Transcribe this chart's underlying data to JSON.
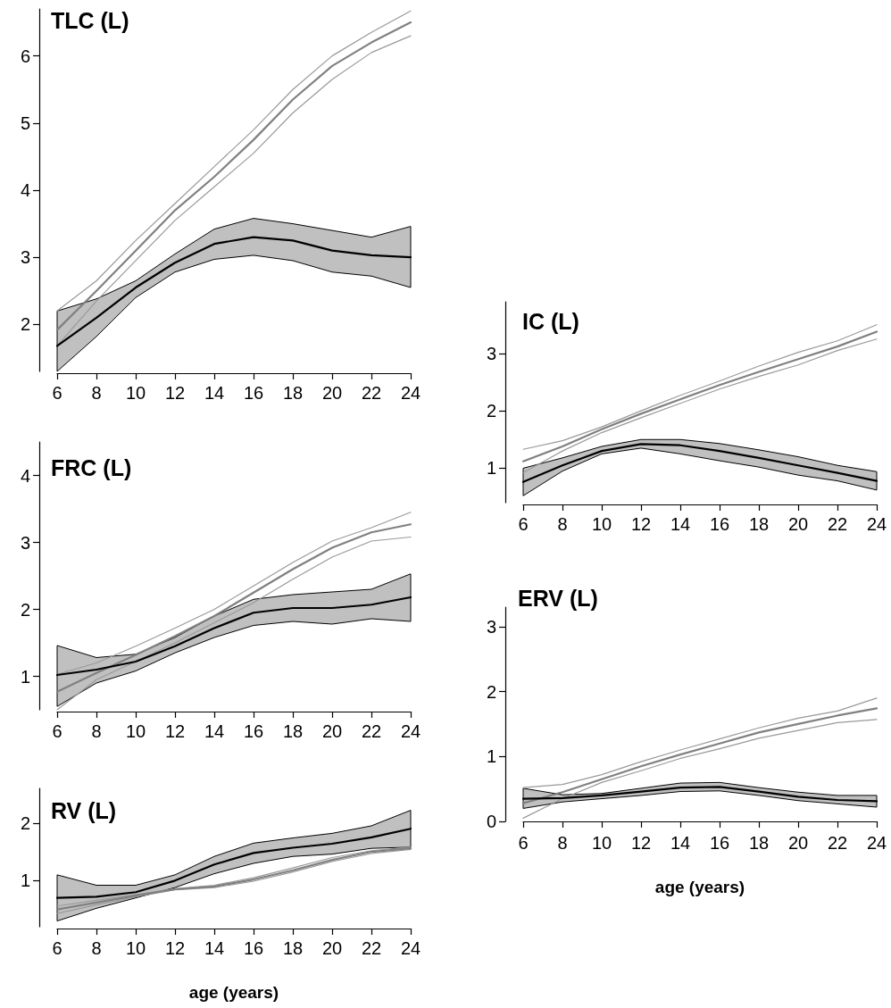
{
  "chart_data": [
    {
      "type": "line",
      "title": "TLC (L)",
      "x": [
        6,
        8,
        10,
        12,
        14,
        16,
        18,
        20,
        22,
        24
      ],
      "xlim": [
        6,
        24
      ],
      "xticks": [
        6,
        8,
        10,
        12,
        14,
        16,
        18,
        20,
        22,
        24
      ],
      "ylim": [
        1.3,
        6.7
      ],
      "yticks": [
        2,
        3,
        4,
        5,
        6
      ],
      "series": [
        {
          "color": "#999999",
          "values": [
            2.2,
            2.65,
            3.25,
            3.8,
            4.35,
            4.9,
            5.5,
            6.0,
            6.35,
            6.67
          ]
        },
        {
          "color": "#999999",
          "values": [
            1.68,
            2.35,
            2.95,
            3.55,
            4.05,
            4.55,
            5.15,
            5.65,
            6.05,
            6.3
          ]
        },
        {
          "color": "#808080",
          "values": [
            1.92,
            2.5,
            3.1,
            3.7,
            4.2,
            4.75,
            5.35,
            5.85,
            6.2,
            6.5
          ]
        },
        {
          "color": "#000000",
          "values": [
            1.68,
            2.1,
            2.55,
            2.92,
            3.2,
            3.3,
            3.25,
            3.1,
            3.03,
            3.0
          ],
          "lower": [
            1.3,
            1.82,
            2.4,
            2.78,
            2.97,
            3.03,
            2.95,
            2.78,
            2.72,
            2.55
          ],
          "upper": [
            2.2,
            2.38,
            2.65,
            3.05,
            3.42,
            3.58,
            3.5,
            3.4,
            3.3,
            3.46
          ]
        }
      ]
    },
    {
      "type": "line",
      "title": "FRC (L)",
      "x": [
        6,
        8,
        10,
        12,
        14,
        16,
        18,
        20,
        22,
        24
      ],
      "xlim": [
        6,
        24
      ],
      "xticks": [
        6,
        8,
        10,
        12,
        14,
        16,
        18,
        20,
        22,
        24
      ],
      "ylim": [
        0.5,
        4.5
      ],
      "yticks": [
        1,
        2,
        3,
        4
      ],
      "series": [
        {
          "color": "#999999",
          "values": [
            1.03,
            1.2,
            1.45,
            1.72,
            2.0,
            2.35,
            2.7,
            3.02,
            3.22,
            3.45
          ]
        },
        {
          "color": "#999999",
          "values": [
            0.5,
            0.95,
            1.22,
            1.5,
            1.8,
            2.1,
            2.45,
            2.78,
            3.02,
            3.08
          ]
        },
        {
          "color": "#808080",
          "values": [
            0.77,
            1.05,
            1.32,
            1.6,
            1.9,
            2.25,
            2.6,
            2.92,
            3.15,
            3.27
          ]
        },
        {
          "color": "#000000",
          "values": [
            1.02,
            1.1,
            1.22,
            1.45,
            1.72,
            1.95,
            2.02,
            2.02,
            2.07,
            2.18
          ],
          "lower": [
            0.55,
            0.9,
            1.08,
            1.35,
            1.58,
            1.76,
            1.82,
            1.78,
            1.86,
            1.82
          ],
          "upper": [
            1.46,
            1.28,
            1.33,
            1.58,
            1.9,
            2.15,
            2.22,
            2.26,
            2.3,
            2.53
          ]
        }
      ]
    },
    {
      "type": "line",
      "title": "RV (L)",
      "xlabel": "age (years)",
      "x": [
        6,
        8,
        10,
        12,
        14,
        16,
        18,
        20,
        22,
        24
      ],
      "xlim": [
        6,
        24
      ],
      "xticks": [
        6,
        8,
        10,
        12,
        14,
        16,
        18,
        20,
        22,
        24
      ],
      "ylim": [
        0.2,
        2.6
      ],
      "yticks": [
        1,
        2
      ],
      "series": [
        {
          "color": "#999999",
          "values": [
            0.56,
            0.66,
            0.76,
            0.86,
            0.92,
            1.05,
            1.22,
            1.4,
            1.52,
            1.58
          ]
        },
        {
          "color": "#999999",
          "values": [
            0.43,
            0.58,
            0.72,
            0.84,
            0.88,
            0.99,
            1.15,
            1.33,
            1.47,
            1.54
          ]
        },
        {
          "color": "#808080",
          "values": [
            0.5,
            0.62,
            0.74,
            0.85,
            0.9,
            1.02,
            1.18,
            1.36,
            1.5,
            1.56
          ]
        },
        {
          "color": "#000000",
          "values": [
            0.7,
            0.72,
            0.8,
            1.0,
            1.28,
            1.48,
            1.57,
            1.64,
            1.75,
            1.9
          ],
          "lower": [
            0.3,
            0.52,
            0.7,
            0.88,
            1.12,
            1.3,
            1.42,
            1.46,
            1.56,
            1.58
          ],
          "upper": [
            1.1,
            0.92,
            0.92,
            1.1,
            1.42,
            1.65,
            1.74,
            1.82,
            1.95,
            2.22
          ]
        }
      ]
    },
    {
      "type": "line",
      "title": "IC (L)",
      "x": [
        6,
        8,
        10,
        12,
        14,
        16,
        18,
        20,
        22,
        24
      ],
      "xlim": [
        6,
        24
      ],
      "xticks": [
        6,
        8,
        10,
        12,
        14,
        16,
        18,
        20,
        22,
        24
      ],
      "ylim": [
        0.4,
        3.9
      ],
      "yticks": [
        1,
        2,
        3
      ],
      "series": [
        {
          "color": "#999999",
          "values": [
            1.33,
            1.48,
            1.72,
            2.0,
            2.27,
            2.52,
            2.78,
            3.02,
            3.22,
            3.5
          ]
        },
        {
          "color": "#999999",
          "values": [
            0.92,
            1.3,
            1.62,
            1.88,
            2.13,
            2.38,
            2.6,
            2.8,
            3.05,
            3.25
          ]
        },
        {
          "color": "#808080",
          "values": [
            1.12,
            1.38,
            1.68,
            1.95,
            2.2,
            2.45,
            2.68,
            2.9,
            3.12,
            3.38
          ]
        },
        {
          "color": "#000000",
          "values": [
            0.76,
            1.05,
            1.3,
            1.42,
            1.4,
            1.3,
            1.18,
            1.05,
            0.92,
            0.78
          ],
          "lower": [
            0.52,
            0.95,
            1.25,
            1.35,
            1.25,
            1.13,
            1.02,
            0.88,
            0.78,
            0.62
          ],
          "upper": [
            1.0,
            1.18,
            1.38,
            1.5,
            1.5,
            1.43,
            1.32,
            1.2,
            1.05,
            0.94
          ]
        }
      ]
    },
    {
      "type": "line",
      "title": "ERV (L)",
      "xlabel": "age (years)",
      "x": [
        6,
        8,
        10,
        12,
        14,
        16,
        18,
        20,
        22,
        24
      ],
      "xlim": [
        6,
        24
      ],
      "xticks": [
        6,
        8,
        10,
        12,
        14,
        16,
        18,
        20,
        22,
        24
      ],
      "ylim": [
        0,
        3.3
      ],
      "yticks": [
        0,
        1,
        2,
        3
      ],
      "series": [
        {
          "color": "#999999",
          "values": [
            0.52,
            0.57,
            0.72,
            0.92,
            1.1,
            1.27,
            1.44,
            1.59,
            1.7,
            1.9
          ]
        },
        {
          "color": "#999999",
          "values": [
            0.05,
            0.35,
            0.6,
            0.78,
            0.97,
            1.12,
            1.28,
            1.4,
            1.52,
            1.57
          ]
        },
        {
          "color": "#808080",
          "values": [
            0.28,
            0.45,
            0.65,
            0.85,
            1.03,
            1.2,
            1.37,
            1.5,
            1.63,
            1.74
          ]
        },
        {
          "color": "#000000",
          "values": [
            0.35,
            0.36,
            0.4,
            0.46,
            0.52,
            0.53,
            0.46,
            0.38,
            0.33,
            0.31
          ],
          "lower": [
            0.2,
            0.3,
            0.35,
            0.4,
            0.46,
            0.47,
            0.4,
            0.32,
            0.27,
            0.22
          ],
          "upper": [
            0.51,
            0.41,
            0.43,
            0.51,
            0.59,
            0.6,
            0.52,
            0.45,
            0.4,
            0.4
          ]
        }
      ]
    }
  ]
}
